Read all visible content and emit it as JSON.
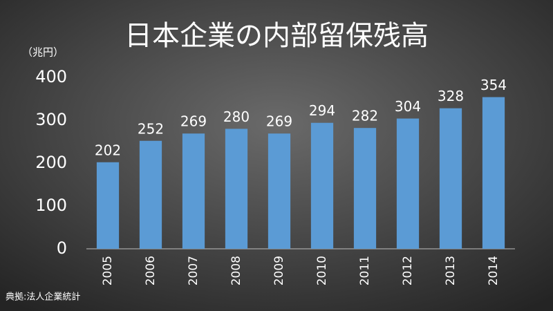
{
  "chart_data": {
    "type": "bar",
    "title": "日本企業の内部留保残高",
    "y_label": "（兆円）",
    "source": "典拠:法人企業統計",
    "categories": [
      "2005",
      "2006",
      "2007",
      "2008",
      "2009",
      "2010",
      "2011",
      "2012",
      "2013",
      "2014"
    ],
    "values": [
      202,
      252,
      269,
      280,
      269,
      294,
      282,
      304,
      328,
      354
    ],
    "color": "#5b9bd5",
    "ylim": [
      0,
      400
    ],
    "yticks": [
      0,
      100,
      200,
      300,
      400
    ],
    "grid": false
  }
}
